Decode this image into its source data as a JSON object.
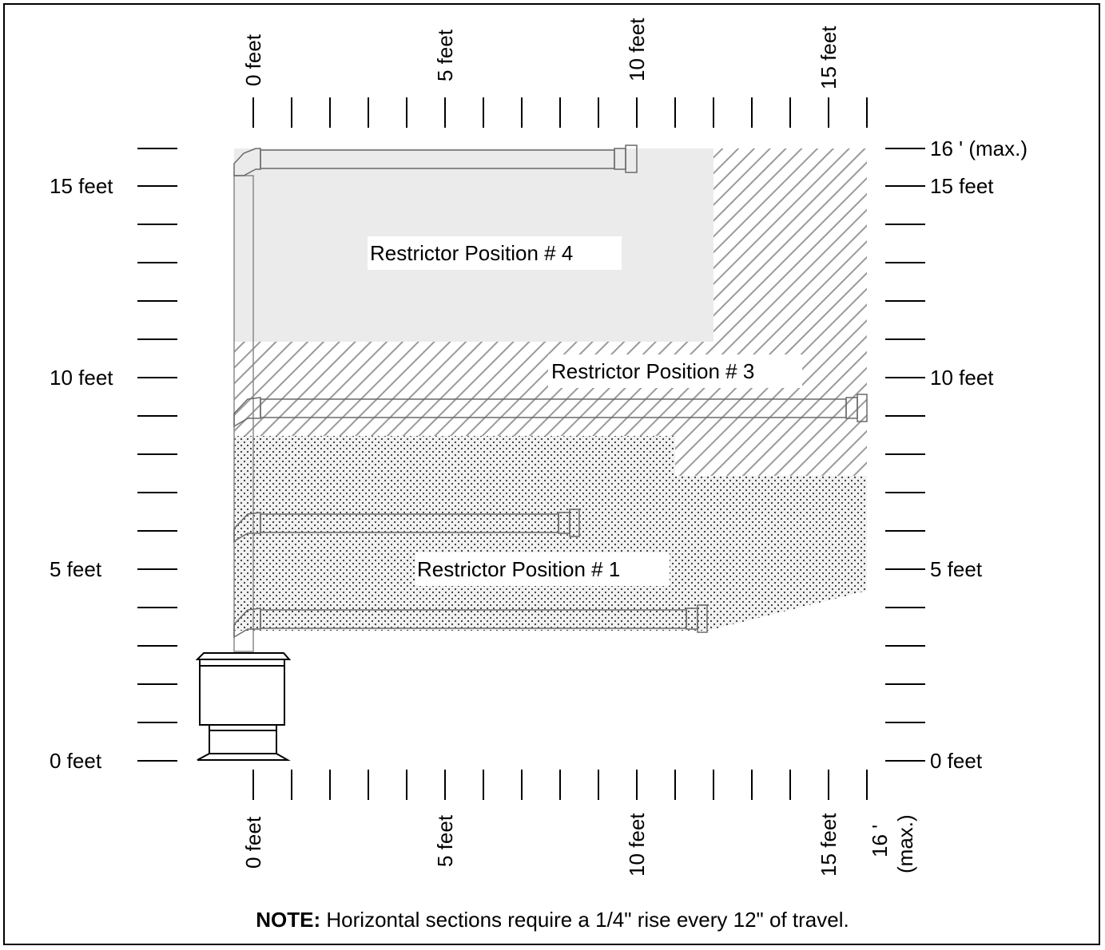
{
  "diagram": {
    "top_axis_labels": [
      "0 feet",
      "5 feet",
      "10 feet",
      "15 feet"
    ],
    "bottom_axis_labels": [
      "0 feet",
      "5 feet",
      "10 feet",
      "15 feet"
    ],
    "bottom_axis_max_line1": "16 '",
    "bottom_axis_max_line2": "(max.)",
    "left_axis_labels": [
      "0 feet",
      "5 feet",
      "10 feet",
      "15 feet"
    ],
    "right_axis_labels": [
      "0 feet",
      "5 feet",
      "10 feet",
      "15 feet"
    ],
    "right_axis_max_label": "16 ' (max.)",
    "regions": [
      {
        "label": "Restrictor Position # 4",
        "fill": "light-gray"
      },
      {
        "label": "Restrictor Position # 3",
        "fill": "diagonal-hatch"
      },
      {
        "label": "Restrictor Position # 1",
        "fill": "dotted"
      }
    ],
    "note_bold": "NOTE:",
    "note_text": " Horizontal sections require a 1/4\" rise every 12\" of travel."
  }
}
